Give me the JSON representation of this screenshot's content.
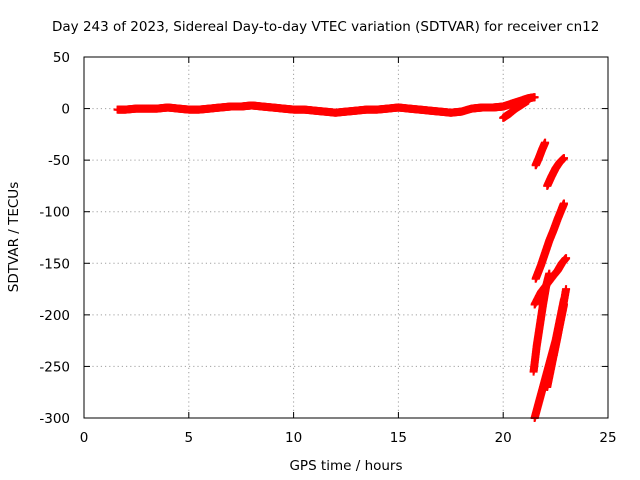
{
  "chart_data": {
    "type": "scatter",
    "title": "Day 243 of 2023, Sidereal Day-to-day VTEC variation (SDTVAR) for receiver cn12",
    "xlabel": "GPS time / hours",
    "ylabel": "SDTVAR / TECUs",
    "xlim": [
      0,
      25
    ],
    "ylim": [
      -300,
      50
    ],
    "x_ticks": [
      "0",
      "5",
      "10",
      "15",
      "20",
      "25"
    ],
    "y_ticks": [
      "50",
      "0",
      "-50",
      "-100",
      "-150",
      "-200",
      "-250",
      "-300"
    ],
    "grid": true,
    "marker_color": "#ff0000",
    "marker": "plus",
    "series": [
      {
        "x": [
          1.6,
          2.0,
          2.5,
          3.0,
          3.5,
          4.0,
          4.5,
          5.0,
          5.5,
          6.0,
          6.5,
          7.0,
          7.5,
          8.0,
          8.5,
          9.0,
          9.5,
          10.0,
          10.5,
          11.0,
          11.5,
          12.0,
          12.5,
          13.0,
          13.5,
          14.0,
          14.5,
          15.0,
          15.5,
          16.0,
          16.5,
          17.0,
          17.5,
          18.0,
          18.5,
          19.0,
          19.5,
          20.0,
          20.3,
          20.6,
          20.9,
          21.2,
          21.5
        ],
        "y": [
          -1,
          -1,
          0,
          0,
          0,
          1,
          0,
          -1,
          -1,
          0,
          1,
          2,
          2,
          3,
          2,
          1,
          0,
          -1,
          -1,
          -2,
          -3,
          -4,
          -3,
          -2,
          -1,
          -1,
          0,
          1,
          0,
          -1,
          -2,
          -3,
          -4,
          -3,
          0,
          1,
          1,
          2,
          4,
          6,
          8,
          10,
          11
        ]
      },
      {
        "x": [
          20.0,
          20.3,
          20.6,
          20.9,
          21.2
        ],
        "y": [
          -9,
          -5,
          0,
          4,
          8
        ]
      },
      {
        "x": [
          21.55,
          21.7,
          21.85,
          22.0
        ],
        "y": [
          -55,
          -48,
          -40,
          -33
        ]
      },
      {
        "x": [
          22.1,
          22.3,
          22.5,
          22.7,
          22.9
        ],
        "y": [
          -75,
          -66,
          -58,
          -52,
          -48
        ]
      },
      {
        "x": [
          21.55,
          21.8,
          22.0,
          22.2,
          22.4,
          22.6,
          22.8,
          22.9
        ],
        "y": [
          -165,
          -152,
          -140,
          -128,
          -118,
          -107,
          -97,
          -92
        ]
      },
      {
        "x": [
          21.5,
          21.8,
          22.1,
          22.4,
          22.6,
          22.8,
          23.0
        ],
        "y": [
          -190,
          -178,
          -170,
          -162,
          -157,
          -150,
          -145
        ]
      },
      {
        "x": [
          21.45,
          21.6,
          21.75,
          21.9,
          22.05,
          22.2
        ],
        "y": [
          -255,
          -230,
          -210,
          -190,
          -172,
          -160
        ]
      },
      {
        "x": [
          21.5,
          21.7,
          21.9,
          22.1,
          22.3,
          22.5,
          22.7,
          22.9
        ],
        "y": [
          -300,
          -285,
          -270,
          -255,
          -240,
          -225,
          -205,
          -185
        ]
      },
      {
        "x": [
          22.1,
          22.3,
          22.5,
          22.7,
          22.9
        ],
        "y": [
          -270,
          -250,
          -230,
          -210,
          -190
        ]
      },
      {
        "x": [
          22.4,
          22.6,
          22.8,
          23.0
        ],
        "y": [
          -240,
          -220,
          -198,
          -175
        ]
      }
    ]
  }
}
